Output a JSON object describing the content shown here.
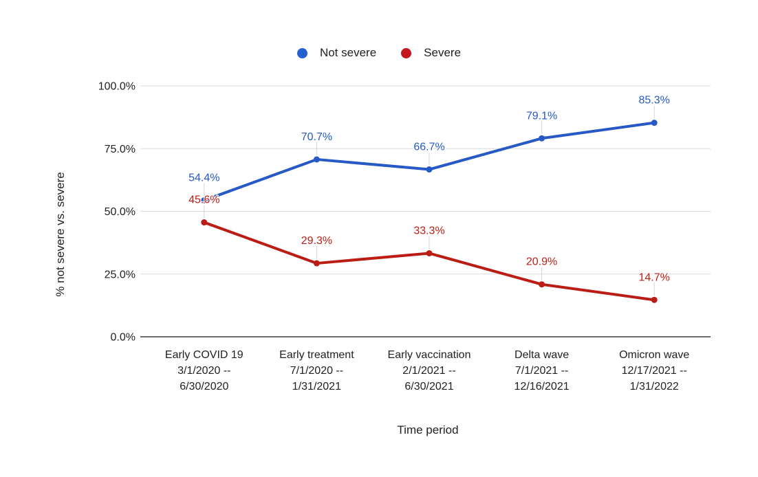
{
  "legend": {
    "items": [
      {
        "label": "Not severe",
        "color": "#2561cd"
      },
      {
        "label": "Severe",
        "color": "#c4161c"
      }
    ]
  },
  "colors": {
    "gridline": "#d9d9d9",
    "axis_line": "#3b3b3b",
    "leader_line": "#d4d4d4",
    "text": "#202124"
  },
  "chart_data": {
    "type": "line",
    "title": "",
    "xlabel": "Time period",
    "ylabel": "% not severe vs. severe",
    "ylim": [
      0,
      100
    ],
    "y_ticks": [
      "100.0%",
      "75.0%",
      "50.0%",
      "25.0%",
      "0.0%"
    ],
    "grid": true,
    "legend_position": "top",
    "marker": "circle",
    "value_suffix": "%",
    "categories": [
      [
        "Early COVID 19",
        "3/1/2020 --",
        "6/30/2020"
      ],
      [
        "Early treatment",
        "7/1/2020 --",
        "1/31/2021"
      ],
      [
        "Early vaccination",
        "2/1/2021 --",
        "6/30/2021"
      ],
      [
        "Delta wave",
        "7/1/2021 --",
        "12/16/2021"
      ],
      [
        "Omicron wave",
        "12/17/2021 --",
        "1/31/2022"
      ]
    ],
    "series": [
      {
        "name": "Not severe",
        "color": "#2659c5",
        "values": [
          54.4,
          70.7,
          66.7,
          79.1,
          85.3
        ]
      },
      {
        "name": "Severe",
        "color": "#bb1d14",
        "values": [
          45.6,
          29.3,
          33.3,
          20.9,
          14.7
        ]
      }
    ]
  }
}
